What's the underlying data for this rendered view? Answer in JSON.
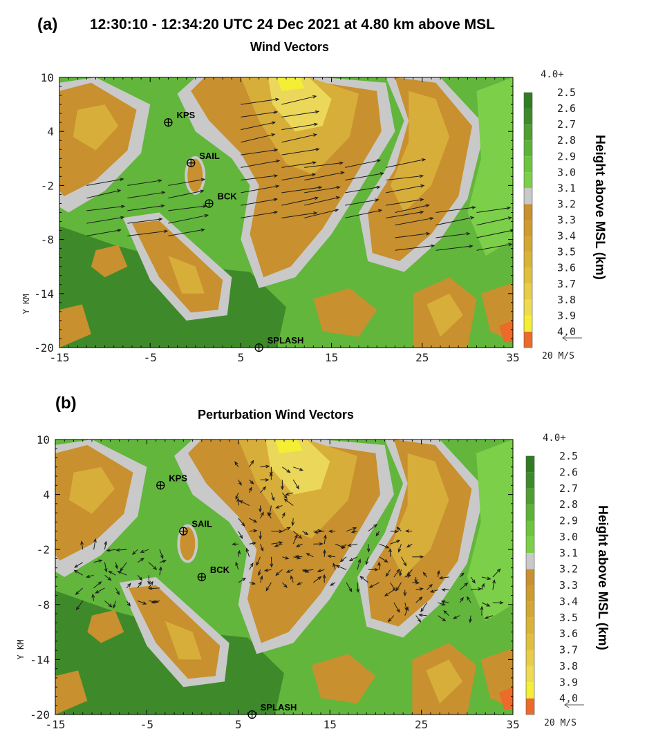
{
  "header": {
    "panel_a": "(a)",
    "panel_b": "(b)",
    "title": "12:30:10 - 12:34:20 UTC 24 Dec 2021 at 4.80 km above MSL",
    "subtitle_a": "Wind Vectors",
    "subtitle_b": "Perturbation Wind Vectors"
  },
  "colors": {
    "dark_green": "#3e8a2a",
    "green": "#62b63c",
    "light_green": "#7ccf48",
    "gray": "#c9c9c9",
    "tan": "#c8902e",
    "gold": "#d8ae3a",
    "light_yellow": "#ebd85a",
    "yellow": "#f4ee34",
    "orange": "#ec6a2a",
    "vector": "#1a1a1a"
  },
  "chart_data": [
    {
      "type": "heatmap",
      "title": "Wind Vectors",
      "ylabel": "Y KM",
      "xlim": [
        -15,
        35
      ],
      "ylim": [
        -20,
        10
      ],
      "x_ticks": [
        "-15",
        "-5",
        "5",
        "15",
        "25",
        "35"
      ],
      "y_ticks": [
        "10",
        "4",
        "-2",
        "-8",
        "-14",
        "-20"
      ],
      "sites": [
        {
          "name": "KPS",
          "x": -3,
          "y": 5
        },
        {
          "name": "SAIL",
          "x": -0.5,
          "y": 0.5
        },
        {
          "name": "BCK",
          "x": 1.5,
          "y": -4
        },
        {
          "name": "SPLASH",
          "x": 7,
          "y": -20
        }
      ],
      "vector_reference": {
        "label": "20 M/S"
      },
      "colorbar": {
        "title": "Height above MSL (km)",
        "top_label": "4.0+",
        "levels": [
          "2.5",
          "2.6",
          "2.7",
          "2.8",
          "2.9",
          "3.0",
          "3.1",
          "3.2",
          "3.3",
          "3.4",
          "3.5",
          "3.6",
          "3.7",
          "3.8",
          "3.9",
          "4.0"
        ]
      }
    },
    {
      "type": "heatmap",
      "title": "Perturbation Wind Vectors",
      "ylabel": "Y KM",
      "xlim": [
        -15,
        35
      ],
      "ylim": [
        -20,
        10
      ],
      "x_ticks": [
        "-15",
        "-5",
        "5",
        "15",
        "25",
        "35"
      ],
      "y_ticks": [
        "10",
        "4",
        "-2",
        "-8",
        "-14",
        "-20"
      ],
      "sites": [
        {
          "name": "KPS",
          "x": -3.5,
          "y": 5
        },
        {
          "name": "SAIL",
          "x": -1,
          "y": 0
        },
        {
          "name": "BCK",
          "x": 1,
          "y": -5
        },
        {
          "name": "SPLASH",
          "x": 6.5,
          "y": -20
        }
      ],
      "vector_reference": {
        "label": "20 M/S"
      },
      "colorbar": {
        "title": "Height above MSL (km)",
        "top_label": "4.0+",
        "levels": [
          "2.5",
          "2.6",
          "2.7",
          "2.8",
          "2.9",
          "3.0",
          "3.1",
          "3.2",
          "3.3",
          "3.4",
          "3.5",
          "3.6",
          "3.7",
          "3.8",
          "3.9",
          "4.0"
        ]
      }
    }
  ]
}
